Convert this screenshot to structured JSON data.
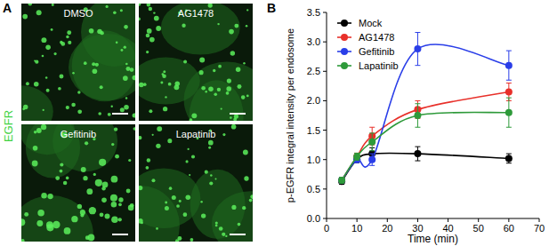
{
  "panel_a": {
    "label": "A",
    "stain": "EGFR",
    "conditions": [
      "DMSO",
      "AG1478",
      "Gefitinib",
      "Lapatinib"
    ]
  },
  "panel_b": {
    "label": "B"
  },
  "chart_data": {
    "type": "line",
    "x_label": "Time (min)",
    "y_label": "p-EGFR integral intensity per endosome",
    "x": [
      5,
      10,
      15,
      30,
      60
    ],
    "series": [
      {
        "name": "Mock",
        "color": "#000000",
        "marker": "circle",
        "values": [
          0.63,
          1.0,
          1.1,
          1.1,
          1.02
        ],
        "errors": [
          0.05,
          0.05,
          0.1,
          0.12,
          0.08
        ]
      },
      {
        "name": "AG1478",
        "color": "#e8302a",
        "marker": "circle",
        "values": [
          0.65,
          1.05,
          1.4,
          1.85,
          2.15
        ],
        "errors": [
          0.05,
          0.06,
          0.15,
          0.15,
          0.15
        ]
      },
      {
        "name": "Gefitinib",
        "color": "#2a3ee8",
        "marker": "circle",
        "values": [
          0.65,
          1.0,
          1.0,
          2.88,
          2.6
        ],
        "errors": [
          0.05,
          0.05,
          0.1,
          0.28,
          0.25
        ]
      },
      {
        "name": "Lapatinib",
        "color": "#2e9a3a",
        "marker": "circle",
        "values": [
          0.65,
          1.05,
          1.3,
          1.75,
          1.8
        ],
        "errors": [
          0.05,
          0.06,
          0.15,
          0.2,
          0.25
        ]
      }
    ],
    "xlim": [
      0,
      70
    ],
    "xticks": [
      0,
      10,
      20,
      30,
      40,
      50,
      60,
      70
    ],
    "ylim": [
      0,
      3.5
    ],
    "yticks": [
      {
        "value": 0,
        "label": "0.0"
      },
      0.5,
      {
        "value": 1,
        "label": "1.0"
      },
      1.5,
      {
        "value": 2,
        "label": "2.0"
      },
      2.5,
      {
        "value": 3,
        "label": "3.0"
      },
      3.5
    ],
    "legend": "top-left",
    "grid": false
  }
}
